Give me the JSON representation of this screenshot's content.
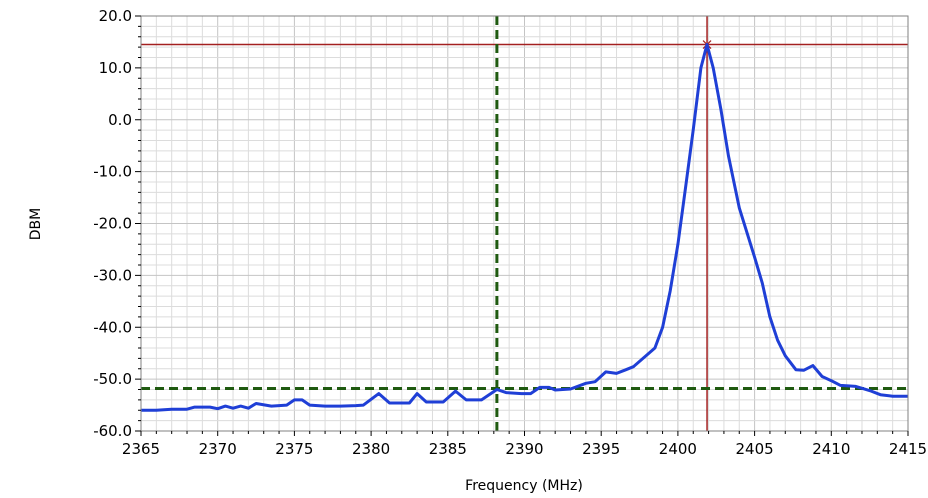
{
  "chart_data": {
    "type": "line",
    "title": "",
    "xlabel": "Frequency (MHz)",
    "ylabel": "DBM",
    "xlim": [
      2365,
      2415
    ],
    "ylim": [
      -60,
      20
    ],
    "x_ticks": [
      "2365",
      "2370",
      "2375",
      "2380",
      "2385",
      "2390",
      "2395",
      "2400",
      "2405",
      "2410",
      "2415"
    ],
    "y_ticks": [
      "20.0",
      "10.0",
      "0.0",
      "-10.0",
      "-20.0",
      "-30.0",
      "-40.0",
      "-50.0",
      "-60.0"
    ],
    "grid": true,
    "minor_grid": true,
    "legend": "none",
    "series": [
      {
        "color": "#1f3fd6",
        "points": [
          [
            2365,
            -56.0
          ],
          [
            2366,
            -56.0
          ],
          [
            2367,
            -55.8
          ],
          [
            2368,
            -55.8
          ],
          [
            2368.5,
            -55.4
          ],
          [
            2369.5,
            -55.4
          ],
          [
            2370,
            -55.7
          ],
          [
            2370.5,
            -55.2
          ],
          [
            2371,
            -55.6
          ],
          [
            2371.5,
            -55.2
          ],
          [
            2372,
            -55.6
          ],
          [
            2372.5,
            -54.7
          ],
          [
            2373.5,
            -55.2
          ],
          [
            2374.5,
            -55.0
          ],
          [
            2375,
            -54.0
          ],
          [
            2375.5,
            -54.0
          ],
          [
            2376,
            -55.0
          ],
          [
            2377,
            -55.2
          ],
          [
            2378,
            -55.2
          ],
          [
            2379,
            -55.1
          ],
          [
            2379.5,
            -55.0
          ],
          [
            2380.5,
            -52.8
          ],
          [
            2381.2,
            -54.6
          ],
          [
            2382.5,
            -54.6
          ],
          [
            2383,
            -52.8
          ],
          [
            2383.6,
            -54.4
          ],
          [
            2384.7,
            -54.4
          ],
          [
            2385.5,
            -52.3
          ],
          [
            2386.2,
            -54.0
          ],
          [
            2387.2,
            -54.0
          ],
          [
            2388.2,
            -52.0
          ],
          [
            2388.8,
            -52.6
          ],
          [
            2389.8,
            -52.8
          ],
          [
            2390.4,
            -52.8
          ],
          [
            2391,
            -51.6
          ],
          [
            2391.6,
            -51.6
          ],
          [
            2392,
            -52.1
          ],
          [
            2393,
            -51.9
          ],
          [
            2394,
            -50.8
          ],
          [
            2394.6,
            -50.5
          ],
          [
            2395.3,
            -48.6
          ],
          [
            2396,
            -48.9
          ],
          [
            2396.6,
            -48.2
          ],
          [
            2397.1,
            -47.6
          ],
          [
            2398.5,
            -44.0
          ],
          [
            2399,
            -40.0
          ],
          [
            2399.5,
            -33.0
          ],
          [
            2400,
            -24.0
          ],
          [
            2400.5,
            -13.0
          ],
          [
            2401,
            -2.0
          ],
          [
            2401.5,
            10.0
          ],
          [
            2401.9,
            14.5
          ],
          [
            2402.3,
            10.0
          ],
          [
            2402.8,
            2.0
          ],
          [
            2403.3,
            -7.0
          ],
          [
            2404,
            -17.0
          ],
          [
            2405,
            -26.5
          ],
          [
            2405.5,
            -31.5
          ],
          [
            2406,
            -38.0
          ],
          [
            2406.5,
            -42.5
          ],
          [
            2407,
            -45.5
          ],
          [
            2407.7,
            -48.2
          ],
          [
            2408.2,
            -48.3
          ],
          [
            2408.8,
            -47.4
          ],
          [
            2409.4,
            -49.5
          ],
          [
            2410,
            -50.3
          ],
          [
            2410.6,
            -51.2
          ],
          [
            2411.6,
            -51.4
          ],
          [
            2412.6,
            -52.3
          ],
          [
            2413.2,
            -53.0
          ],
          [
            2414,
            -53.3
          ],
          [
            2415,
            -53.3
          ]
        ]
      }
    ],
    "markers": {
      "red_cursor": {
        "x": 2401.9,
        "y": 14.5,
        "color": "#a32020"
      },
      "green_cursor": {
        "x": 2388.2,
        "y": -51.8,
        "color": "#1f5a10"
      }
    }
  }
}
